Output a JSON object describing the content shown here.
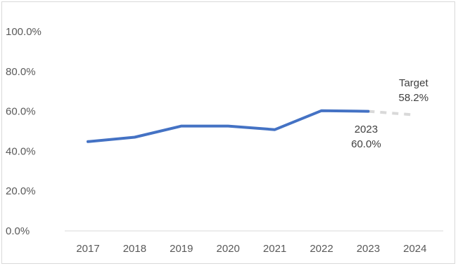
{
  "chart_data": {
    "type": "line",
    "title": "",
    "xlabel": "",
    "ylabel": "",
    "categories": [
      "2017",
      "2018",
      "2019",
      "2020",
      "2021",
      "2022",
      "2023",
      "2024"
    ],
    "ylim": [
      0,
      100
    ],
    "y_ticks": [
      0,
      20,
      40,
      60,
      80,
      100
    ],
    "y_tick_labels": [
      "0.0%",
      "20.0%",
      "40.0%",
      "60.0%",
      "80.0%",
      "100.0%"
    ],
    "gridlines": false,
    "legend": "none",
    "series": [
      {
        "values": [
          44.8,
          47.0,
          52.6,
          52.6,
          50.8,
          60.3,
          60.0,
          null
        ],
        "color": "#4472c4",
        "style": "solid"
      },
      {
        "values": [
          null,
          null,
          null,
          null,
          null,
          null,
          60.0,
          58.2
        ],
        "color": "#d9d9d9",
        "style": "dashed"
      }
    ],
    "annotations": [
      {
        "category": "2023",
        "lines": [
          "2023",
          "60.0%"
        ],
        "position": "below"
      },
      {
        "category": "2024",
        "lines": [
          "Target",
          "58.2%"
        ],
        "position": "above"
      }
    ]
  }
}
